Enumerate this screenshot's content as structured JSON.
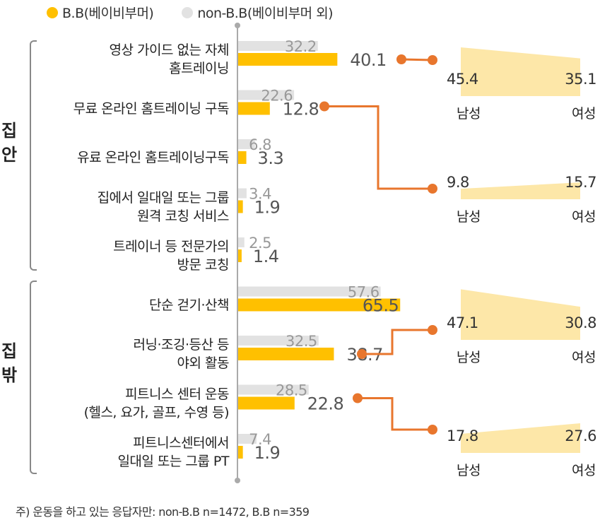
{
  "legend": {
    "bb_label": "B.B(베이비부머)",
    "nonbb_label": "non-B.B(베이비부머 외)"
  },
  "colors": {
    "bb": "#FFC000",
    "nonbb": "#E2E2E2",
    "connector": "#E8762D",
    "gender_area": "#FDE7A8",
    "nonbb_text": "#999999",
    "bb_text": "#555555",
    "axis": "#AAAAAA"
  },
  "groups": [
    {
      "label": "집\n안"
    },
    {
      "label": "집\n밖"
    }
  ],
  "footnote": "주) 운동을 하고 있는 응답자만: non-B.B n=1472, B.B n=359",
  "chart_data": {
    "type": "bar",
    "orientation": "horizontal",
    "categories": [
      [
        "영상 가이드 없는 자체",
        "홈트레이닝"
      ],
      [
        "무료 온라인 홈트레이닝 구독"
      ],
      [
        "유료 온라인 홈트레이닝구독"
      ],
      [
        "집에서 일대일 또는 그룹",
        "원격 코칭 서비스"
      ],
      [
        "트레이너 등 전문가의",
        "방문 코칭"
      ],
      [
        "단순 걷기·산책"
      ],
      [
        "러닝·조깅·등산 등",
        "야외 활동"
      ],
      [
        "피트니스 센터 운동",
        "(헬스, 요가, 골프, 수영 등)"
      ],
      [
        "피트니스센터에서",
        "일대일 또는 그룹 PT"
      ]
    ],
    "series": [
      {
        "name": "non-B.B(베이비부머 외)",
        "values": [
          32.2,
          22.6,
          6.8,
          3.4,
          2.5,
          57.6,
          32.5,
          28.5,
          7.4
        ]
      },
      {
        "name": "B.B(베이비부머)",
        "values": [
          40.1,
          12.8,
          3.3,
          1.9,
          1.4,
          65.5,
          38.7,
          22.8,
          1.9
        ]
      }
    ],
    "gender_breakdown": [
      {
        "category_index": 0,
        "labels": [
          "남성",
          "여성"
        ],
        "values": [
          45.4,
          35.1
        ]
      },
      {
        "category_index": 1,
        "labels": [
          "남성",
          "여성"
        ],
        "values": [
          9.8,
          15.7
        ]
      },
      {
        "category_index": 6,
        "labels": [
          "남성",
          "여성"
        ],
        "values": [
          47.1,
          30.8
        ]
      },
      {
        "category_index": 7,
        "labels": [
          "남성",
          "여성"
        ],
        "values": [
          17.8,
          27.6
        ]
      }
    ]
  }
}
